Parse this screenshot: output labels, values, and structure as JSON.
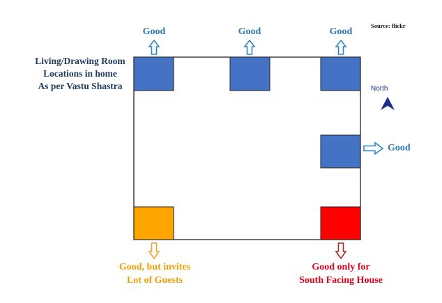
{
  "title_lines": [
    "Living/Drawing Room",
    "Locations in home",
    "As per Vastu Shastra"
  ],
  "source": "Source: flickr",
  "compass": {
    "label": "North",
    "icon": "north-arrow-icon"
  },
  "labels": {
    "top_left": "Good",
    "top_middle": "Good",
    "top_right": "Good",
    "east": "Good",
    "bottom_left_lines": [
      "Good, but invites",
      "Lot of Guests"
    ],
    "bottom_right_lines": [
      "Good only for",
      "South Facing House"
    ]
  },
  "colors": {
    "good": "#4472C4",
    "guests": "#FFA500",
    "south_only": "#FF0000",
    "arrow_good": "#2E86C1",
    "arrow_guests": "#F0A030",
    "arrow_south": "#A52A2A",
    "north": "#1a2d8a"
  }
}
